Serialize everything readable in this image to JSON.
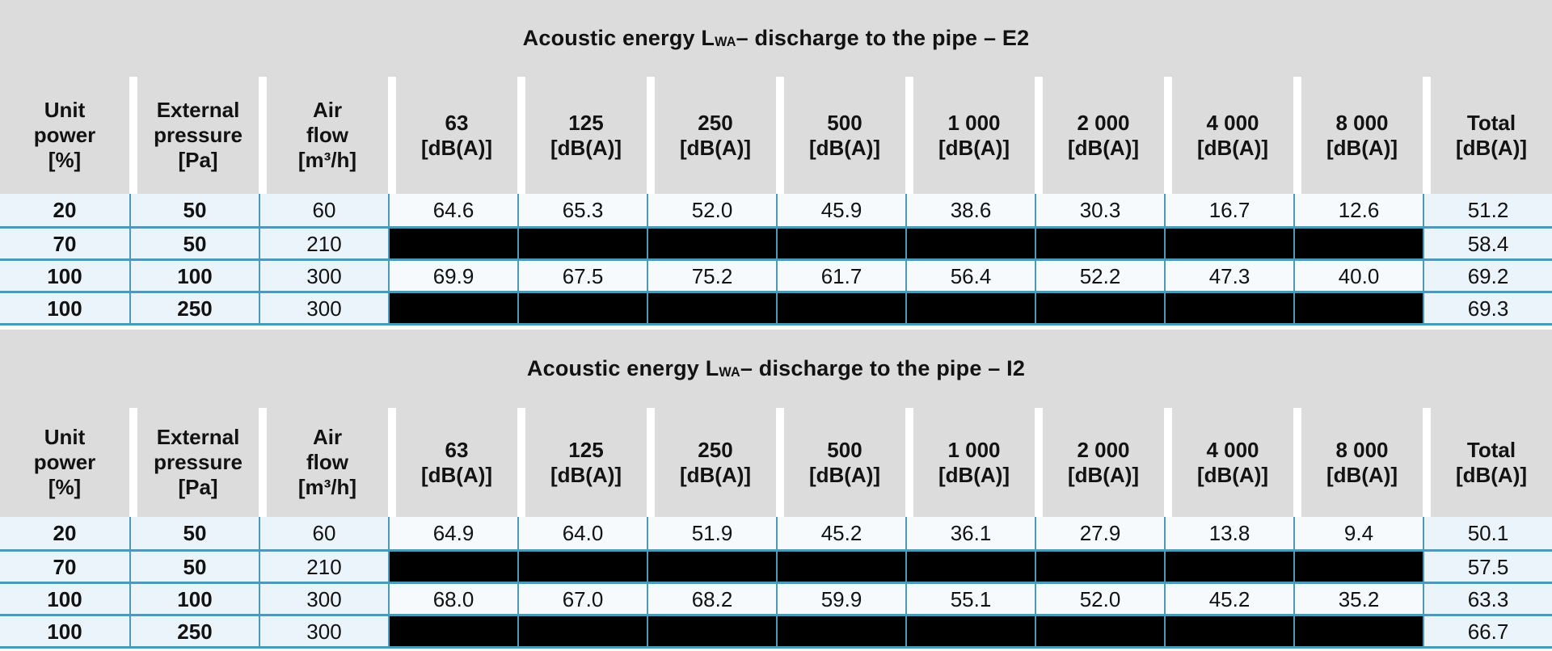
{
  "colors": {
    "band_gray": "#dcdcdc",
    "row_blue": "#eaf4fa",
    "freq_white": "#f7fafc",
    "border_blue": "#4d98bc",
    "redacted_black": "#000000",
    "text": "#121212"
  },
  "tables": [
    {
      "id": "e2",
      "title": {
        "prefix": "Acoustic energy L",
        "subscript": "WA",
        "suffix": " – discharge to the pipe – E2"
      },
      "columns": [
        {
          "id": "unit_power",
          "lines": [
            "Unit",
            "power",
            "[%]"
          ]
        },
        {
          "id": "external_pressure",
          "lines": [
            "External",
            "pressure",
            "[Pa]"
          ]
        },
        {
          "id": "air_flow",
          "lines": [
            "Air",
            "flow",
            "[m³/h]"
          ]
        },
        {
          "id": "f63",
          "lines": [
            "63",
            "[dB(A)]"
          ]
        },
        {
          "id": "f125",
          "lines": [
            "125",
            "[dB(A)]"
          ]
        },
        {
          "id": "f250",
          "lines": [
            "250",
            "[dB(A)]"
          ]
        },
        {
          "id": "f500",
          "lines": [
            "500",
            "[dB(A)]"
          ]
        },
        {
          "id": "f1000",
          "lines": [
            "1 000",
            "[dB(A)]"
          ]
        },
        {
          "id": "f2000",
          "lines": [
            "2 000",
            "[dB(A)]"
          ]
        },
        {
          "id": "f4000",
          "lines": [
            "4 000",
            "[dB(A)]"
          ]
        },
        {
          "id": "f8000",
          "lines": [
            "8 000",
            "[dB(A)]"
          ]
        },
        {
          "id": "total",
          "lines": [
            "Total",
            "[dB(A)]"
          ]
        }
      ],
      "rows": [
        {
          "unit_power": "20",
          "external_pressure": "50",
          "air_flow": "60",
          "bands": [
            "64.6",
            "65.3",
            "52.0",
            "45.9",
            "38.6",
            "30.3",
            "16.7",
            "12.6"
          ],
          "total": "51.2"
        },
        {
          "unit_power": "70",
          "external_pressure": "50",
          "air_flow": "210",
          "bands": [
            null,
            null,
            null,
            null,
            null,
            null,
            null,
            null
          ],
          "total": "58.4"
        },
        {
          "unit_power": "100",
          "external_pressure": "100",
          "air_flow": "300",
          "bands": [
            "69.9",
            "67.5",
            "75.2",
            "61.7",
            "56.4",
            "52.2",
            "47.3",
            "40.0"
          ],
          "total": "69.2"
        },
        {
          "unit_power": "100",
          "external_pressure": "250",
          "air_flow": "300",
          "bands": [
            null,
            null,
            null,
            null,
            null,
            null,
            null,
            null
          ],
          "total": "69.3"
        }
      ]
    },
    {
      "id": "i2",
      "title": {
        "prefix": "Acoustic energy L",
        "subscript": "WA",
        "suffix": " – discharge to the pipe – I2"
      },
      "columns": [
        {
          "id": "unit_power",
          "lines": [
            "Unit",
            "power",
            "[%]"
          ]
        },
        {
          "id": "external_pressure",
          "lines": [
            "External",
            "pressure",
            "[Pa]"
          ]
        },
        {
          "id": "air_flow",
          "lines": [
            "Air",
            "flow",
            "[m³/h]"
          ]
        },
        {
          "id": "f63",
          "lines": [
            "63",
            "[dB(A)]"
          ]
        },
        {
          "id": "f125",
          "lines": [
            "125",
            "[dB(A)]"
          ]
        },
        {
          "id": "f250",
          "lines": [
            "250",
            "[dB(A)]"
          ]
        },
        {
          "id": "f500",
          "lines": [
            "500",
            "[dB(A)]"
          ]
        },
        {
          "id": "f1000",
          "lines": [
            "1 000",
            "[dB(A)]"
          ]
        },
        {
          "id": "f2000",
          "lines": [
            "2 000",
            "[dB(A)]"
          ]
        },
        {
          "id": "f4000",
          "lines": [
            "4 000",
            "[dB(A)]"
          ]
        },
        {
          "id": "f8000",
          "lines": [
            "8 000",
            "[dB(A)]"
          ]
        },
        {
          "id": "total",
          "lines": [
            "Total",
            "[dB(A)]"
          ]
        }
      ],
      "rows": [
        {
          "unit_power": "20",
          "external_pressure": "50",
          "air_flow": "60",
          "bands": [
            "64.9",
            "64.0",
            "51.9",
            "45.2",
            "36.1",
            "27.9",
            "13.8",
            "9.4"
          ],
          "total": "50.1"
        },
        {
          "unit_power": "70",
          "external_pressure": "50",
          "air_flow": "210",
          "bands": [
            null,
            null,
            null,
            null,
            null,
            null,
            null,
            null
          ],
          "total": "57.5"
        },
        {
          "unit_power": "100",
          "external_pressure": "100",
          "air_flow": "300",
          "bands": [
            "68.0",
            "67.0",
            "68.2",
            "59.9",
            "55.1",
            "52.0",
            "45.2",
            "35.2"
          ],
          "total": "63.3"
        },
        {
          "unit_power": "100",
          "external_pressure": "250",
          "air_flow": "300",
          "bands": [
            null,
            null,
            null,
            null,
            null,
            null,
            null,
            null
          ],
          "total": "66.7"
        }
      ]
    }
  ]
}
